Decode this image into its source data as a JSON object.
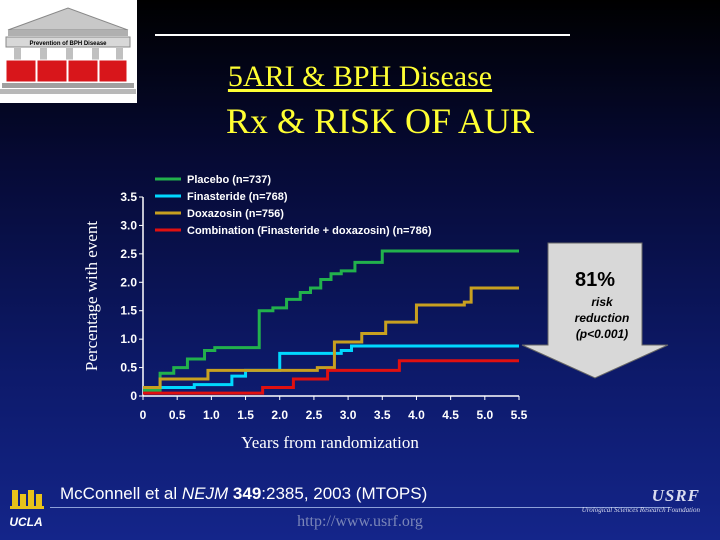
{
  "logo": {
    "banner_text": "Prevention of BPH Disease"
  },
  "slide": {
    "subtitle": "5ARI & BPH Disease",
    "title": "Rx & RISK OF AUR",
    "citation_authors": "McConnell et al ",
    "citation_journal": "NEJM",
    "citation_volume": "349",
    "citation_rest": ":2385, 2003 (MTOPS)",
    "url": "http://www.usrf.org",
    "usrf_name": "USRF",
    "usrf_full": "Urological Sciences Research Foundation",
    "ucla_label": "UCLA"
  },
  "callout": {
    "big": "81%",
    "lines": [
      "risk",
      "reduction",
      "(p<0.001)"
    ]
  },
  "colors": {
    "placebo": "#22b14c",
    "finasteride": "#00d8ff",
    "doxazosin": "#c8a020",
    "combination": "#e01010"
  },
  "chart_data": {
    "type": "line",
    "title": "",
    "xlabel": "Years from randomization",
    "ylabel": "Percentage with event",
    "xlim": [
      0,
      5.5
    ],
    "ylim": [
      0,
      3.5
    ],
    "x_ticks": [
      "0",
      "0.5",
      "1.0",
      "1.5",
      "2.0",
      "2.5",
      "3.0",
      "3.5",
      "4.0",
      "4.5",
      "5.0",
      "5.5"
    ],
    "y_ticks": [
      "0",
      "0.5",
      "1.0",
      "1.5",
      "2.0",
      "2.5",
      "3.0",
      "3.5"
    ],
    "legend_position": "top-left",
    "series": [
      {
        "name": "Placebo (n=737)",
        "color": "#22b14c",
        "steps": [
          [
            0,
            0.1
          ],
          [
            0.25,
            0.4
          ],
          [
            0.45,
            0.5
          ],
          [
            0.65,
            0.65
          ],
          [
            0.9,
            0.8
          ],
          [
            1.05,
            0.85
          ],
          [
            1.7,
            1.5
          ],
          [
            1.9,
            1.55
          ],
          [
            2.1,
            1.7
          ],
          [
            2.3,
            1.82
          ],
          [
            2.45,
            1.9
          ],
          [
            2.6,
            2.05
          ],
          [
            2.75,
            2.15
          ],
          [
            2.9,
            2.2
          ],
          [
            3.1,
            2.35
          ],
          [
            3.5,
            2.55
          ],
          [
            4.0,
            2.55
          ],
          [
            5.5,
            2.55
          ]
        ]
      },
      {
        "name": "Finasteride (n=768)",
        "color": "#00d8ff",
        "steps": [
          [
            0,
            0.15
          ],
          [
            0.75,
            0.2
          ],
          [
            1.3,
            0.35
          ],
          [
            1.5,
            0.45
          ],
          [
            2.0,
            0.75
          ],
          [
            2.9,
            0.8
          ],
          [
            3.05,
            0.88
          ],
          [
            3.95,
            0.88
          ],
          [
            5.5,
            0.88
          ]
        ]
      },
      {
        "name": "Doxazosin (n=756)",
        "color": "#c8a020",
        "steps": [
          [
            0,
            0.15
          ],
          [
            0.25,
            0.3
          ],
          [
            0.95,
            0.45
          ],
          [
            2.55,
            0.5
          ],
          [
            2.8,
            0.95
          ],
          [
            3.2,
            1.1
          ],
          [
            3.55,
            1.3
          ],
          [
            4.0,
            1.6
          ],
          [
            4.7,
            1.65
          ],
          [
            4.8,
            1.9
          ],
          [
            5.5,
            1.9
          ]
        ]
      },
      {
        "name": "Combination (Finasteride + doxazosin) (n=786)",
        "color": "#e01010",
        "steps": [
          [
            0,
            0.05
          ],
          [
            1.75,
            0.15
          ],
          [
            2.2,
            0.3
          ],
          [
            2.7,
            0.45
          ],
          [
            3.75,
            0.62
          ],
          [
            5.5,
            0.62
          ]
        ]
      }
    ]
  }
}
